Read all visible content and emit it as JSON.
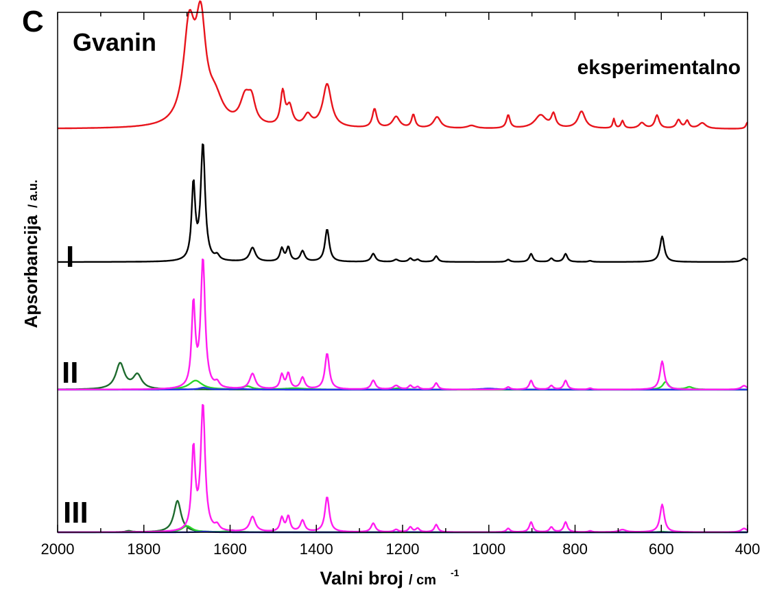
{
  "chart_data": {
    "type": "line",
    "panel_letter": "C",
    "title": "Gvanin",
    "xlabel_main": "Valni broj",
    "xlabel_unit": "/ cm",
    "xlabel_unit_sup": "-1",
    "ylabel_main": "Apsorbancija",
    "ylabel_unit": "/ a.u.",
    "xlim": [
      2000,
      400
    ],
    "x_reversed": true,
    "xticks": [
      2000,
      1800,
      1600,
      1400,
      1200,
      1000,
      800,
      600,
      400
    ],
    "xminor_step": 100,
    "grid": false,
    "panels": [
      {
        "label": "eksperimentalno",
        "series": [
          {
            "color": "#e8141c",
            "baseline": 0.0,
            "peaks": [
              [
                1695,
                1.0,
                16
              ],
              [
                1668,
                1.0,
                14
              ],
              [
                1635,
                0.25,
                22
              ],
              [
                1565,
                0.28,
                14
              ],
              [
                1550,
                0.22,
                10
              ],
              [
                1478,
                0.35,
                6
              ],
              [
                1462,
                0.2,
                8
              ],
              [
                1420,
                0.12,
                10
              ],
              [
                1375,
                0.46,
                12
              ],
              [
                1265,
                0.2,
                6
              ],
              [
                1215,
                0.12,
                10
              ],
              [
                1175,
                0.14,
                5
              ],
              [
                1120,
                0.12,
                10
              ],
              [
                1040,
                0.03,
                12
              ],
              [
                955,
                0.14,
                5
              ],
              [
                880,
                0.14,
                16
              ],
              [
                850,
                0.14,
                6
              ],
              [
                785,
                0.18,
                10
              ],
              [
                710,
                0.1,
                3
              ],
              [
                690,
                0.08,
                4
              ],
              [
                645,
                0.06,
                8
              ],
              [
                610,
                0.14,
                6
              ],
              [
                560,
                0.09,
                6
              ],
              [
                540,
                0.08,
                5
              ],
              [
                505,
                0.06,
                10
              ],
              [
                400,
                0.07,
                4
              ]
            ]
          }
        ]
      },
      {
        "label": "I",
        "series": [
          {
            "color": "#000000",
            "peaks": [
              [
                1685,
                0.65,
                5
              ],
              [
                1663,
                1.0,
                6
              ],
              [
                1630,
                0.04,
                6
              ],
              [
                1548,
                0.12,
                8
              ],
              [
                1480,
                0.11,
                5
              ],
              [
                1465,
                0.12,
                5
              ],
              [
                1432,
                0.09,
                6
              ],
              [
                1375,
                0.28,
                6
              ],
              [
                1268,
                0.07,
                6
              ],
              [
                1215,
                0.02,
                6
              ],
              [
                1182,
                0.03,
                5
              ],
              [
                1165,
                0.02,
                5
              ],
              [
                1122,
                0.05,
                5
              ],
              [
                955,
                0.02,
                5
              ],
              [
                902,
                0.07,
                5
              ],
              [
                855,
                0.03,
                5
              ],
              [
                822,
                0.07,
                5
              ],
              [
                765,
                0.01,
                5
              ],
              [
                598,
                0.22,
                6
              ],
              [
                408,
                0.03,
                8
              ]
            ]
          }
        ]
      },
      {
        "label": "II",
        "series": [
          {
            "color": "#ff1cf0",
            "peaks": [
              [
                1685,
                0.65,
                5
              ],
              [
                1663,
                1.0,
                6
              ],
              [
                1630,
                0.04,
                6
              ],
              [
                1548,
                0.12,
                8
              ],
              [
                1480,
                0.11,
                5
              ],
              [
                1465,
                0.12,
                5
              ],
              [
                1432,
                0.09,
                6
              ],
              [
                1375,
                0.28,
                6
              ],
              [
                1268,
                0.07,
                6
              ],
              [
                1215,
                0.03,
                8
              ],
              [
                1182,
                0.03,
                5
              ],
              [
                1165,
                0.02,
                5
              ],
              [
                1122,
                0.05,
                5
              ],
              [
                955,
                0.02,
                5
              ],
              [
                902,
                0.07,
                5
              ],
              [
                855,
                0.03,
                5
              ],
              [
                822,
                0.07,
                5
              ],
              [
                765,
                0.01,
                5
              ],
              [
                598,
                0.22,
                6
              ],
              [
                408,
                0.03,
                8
              ]
            ]
          },
          {
            "color": "#1e6b2e",
            "peaks": [
              [
                1855,
                0.2,
                12
              ],
              [
                1815,
                0.11,
                12
              ]
            ]
          },
          {
            "color": "#2bd62b",
            "peaks": [
              [
                1680,
                0.07,
                18
              ],
              [
                1560,
                0.025,
                12
              ],
              [
                1450,
                0.01,
                30
              ],
              [
                1210,
                0.01,
                15
              ],
              [
                590,
                0.06,
                8
              ],
              [
                535,
                0.02,
                10
              ]
            ]
          },
          {
            "color": "#2a35e8",
            "peaks": [
              [
                1662,
                0.015,
                12
              ],
              [
                1575,
                0.005,
                20
              ],
              [
                1000,
                0.008,
                25
              ]
            ]
          }
        ]
      },
      {
        "label": "III",
        "series": [
          {
            "color": "#ff1cf0",
            "peaks": [
              [
                1685,
                0.65,
                5
              ],
              [
                1663,
                1.0,
                6
              ],
              [
                1630,
                0.04,
                6
              ],
              [
                1548,
                0.12,
                8
              ],
              [
                1480,
                0.11,
                5
              ],
              [
                1465,
                0.12,
                5
              ],
              [
                1432,
                0.09,
                6
              ],
              [
                1375,
                0.28,
                6
              ],
              [
                1268,
                0.07,
                6
              ],
              [
                1215,
                0.02,
                6
              ],
              [
                1182,
                0.04,
                5
              ],
              [
                1165,
                0.03,
                5
              ],
              [
                1122,
                0.06,
                5
              ],
              [
                955,
                0.03,
                5
              ],
              [
                902,
                0.08,
                5
              ],
              [
                855,
                0.04,
                5
              ],
              [
                822,
                0.08,
                5
              ],
              [
                765,
                0.01,
                5
              ],
              [
                690,
                0.02,
                10
              ],
              [
                598,
                0.22,
                6
              ],
              [
                408,
                0.03,
                8
              ]
            ]
          },
          {
            "color": "#1e6b2e",
            "peaks": [
              [
                1722,
                0.25,
                10
              ],
              [
                1835,
                0.01,
                8
              ],
              [
                1595,
                0.015,
                10
              ]
            ]
          },
          {
            "color": "#2bd62b",
            "peaks": [
              [
                1700,
                0.05,
                14
              ],
              [
                1600,
                0.01,
                15
              ],
              [
                598,
                0.005,
                10
              ]
            ]
          },
          {
            "color": "#2a35e8",
            "peaks": [
              [
                1660,
                0.005,
                15
              ],
              [
                1200,
                0.002,
                40
              ]
            ]
          }
        ]
      }
    ]
  }
}
